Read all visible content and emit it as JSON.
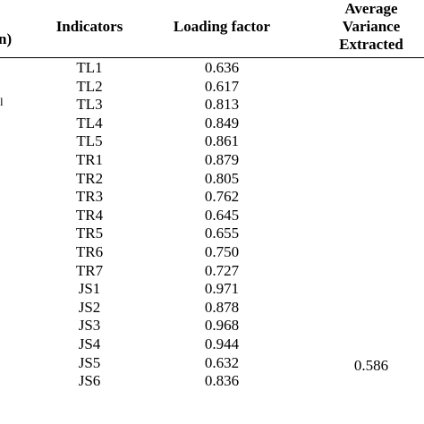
{
  "header": {
    "left_fragment": "n)",
    "indicators": "Indicators",
    "loading_factor": "Loading factor",
    "ave_line1": "Average",
    "ave_line2": "Variance",
    "ave_line3": "Extracted"
  },
  "side_mark": "l",
  "rows": [
    {
      "indicator": "TL1",
      "loading": "0.636"
    },
    {
      "indicator": "TL2",
      "loading": "0.617"
    },
    {
      "indicator": "TL3",
      "loading": "0.813"
    },
    {
      "indicator": "TL4",
      "loading": "0.849"
    },
    {
      "indicator": "TL5",
      "loading": "0.861"
    },
    {
      "indicator": "TR1",
      "loading": "0.879"
    },
    {
      "indicator": "TR2",
      "loading": "0.805"
    },
    {
      "indicator": "TR3",
      "loading": "0.762"
    },
    {
      "indicator": "TR4",
      "loading": "0.645"
    },
    {
      "indicator": "TR5",
      "loading": "0.655"
    },
    {
      "indicator": "TR6",
      "loading": "0.750"
    },
    {
      "indicator": "TR7",
      "loading": "0.727"
    },
    {
      "indicator": "JS1",
      "loading": "0.971"
    },
    {
      "indicator": "JS2",
      "loading": "0.878"
    },
    {
      "indicator": "JS3",
      "loading": "0.968"
    },
    {
      "indicator": "JS4",
      "loading": "0.944"
    },
    {
      "indicator": "JS5",
      "loading": "0.632"
    },
    {
      "indicator": "JS6",
      "loading": "0.836"
    }
  ],
  "ave_value": "0.586"
}
